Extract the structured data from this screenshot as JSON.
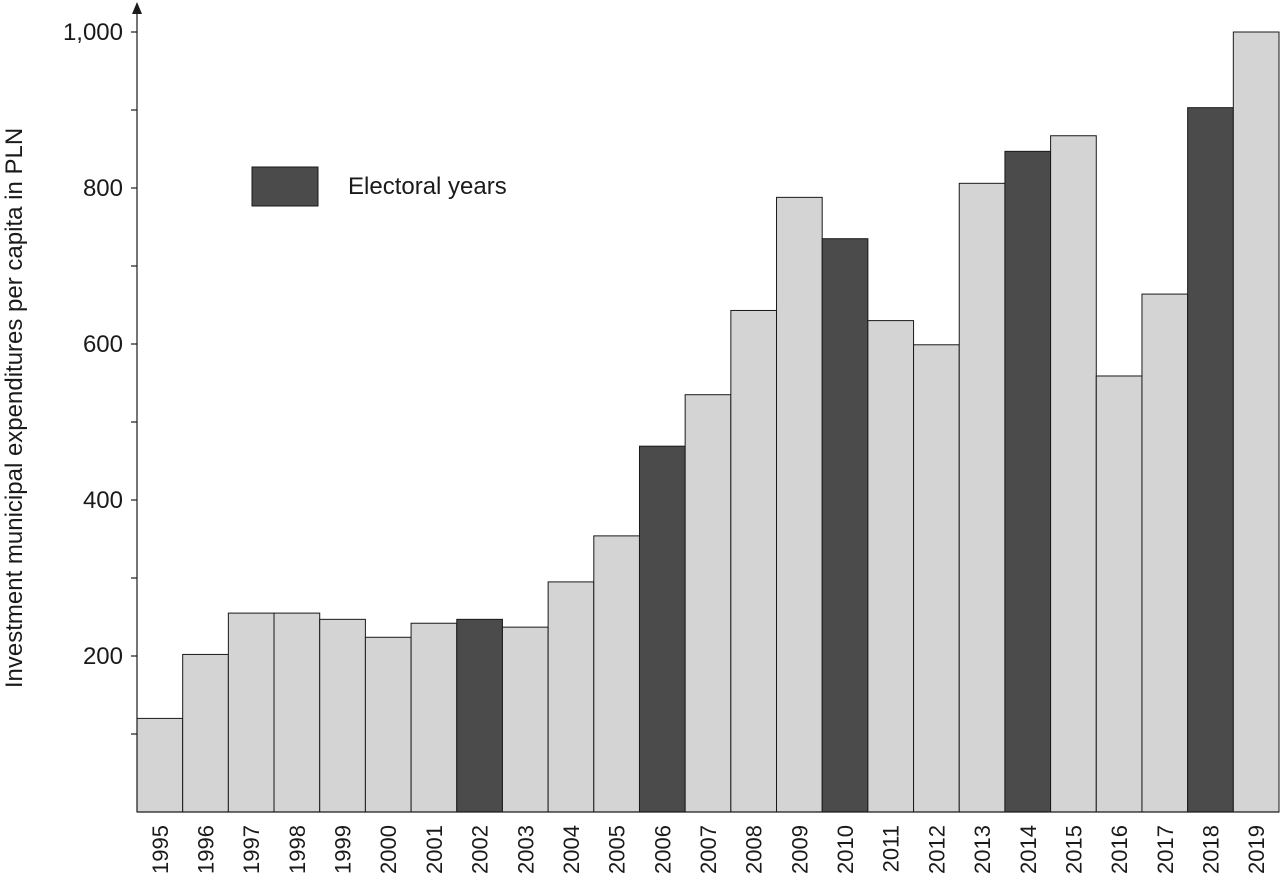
{
  "chart_data": {
    "type": "bar",
    "title": "",
    "xlabel": "",
    "ylabel": "Investment municipal expenditures per capita in PLN",
    "categories": [
      "1995",
      "1996",
      "1997",
      "1998",
      "1999",
      "2000",
      "2001",
      "2002",
      "2003",
      "2004",
      "2005",
      "2006",
      "2007",
      "2008",
      "2009",
      "2010",
      "2011",
      "2012",
      "2013",
      "2014",
      "2015",
      "2016",
      "2017",
      "2018",
      "2019"
    ],
    "values": [
      120,
      202,
      255,
      255,
      247,
      224,
      242,
      247,
      237,
      295,
      354,
      469,
      535,
      643,
      788,
      735,
      630,
      599,
      806,
      847,
      867,
      559,
      664,
      903,
      1000
    ],
    "electoral": [
      false,
      false,
      false,
      false,
      false,
      false,
      false,
      true,
      false,
      false,
      false,
      true,
      false,
      false,
      false,
      true,
      false,
      false,
      false,
      true,
      false,
      false,
      false,
      true,
      false
    ],
    "ylim": [
      0,
      1000
    ],
    "yticks": [
      200,
      400,
      600,
      800,
      1000
    ],
    "ytick_labels": [
      "200",
      "400",
      "600",
      "800",
      "1,000"
    ],
    "colors": {
      "regular": "#d4d4d4",
      "electoral": "#4b4b4b",
      "outline": "#1a1a1a"
    },
    "legend": {
      "label": "Electoral years",
      "placement": "top-left"
    }
  }
}
